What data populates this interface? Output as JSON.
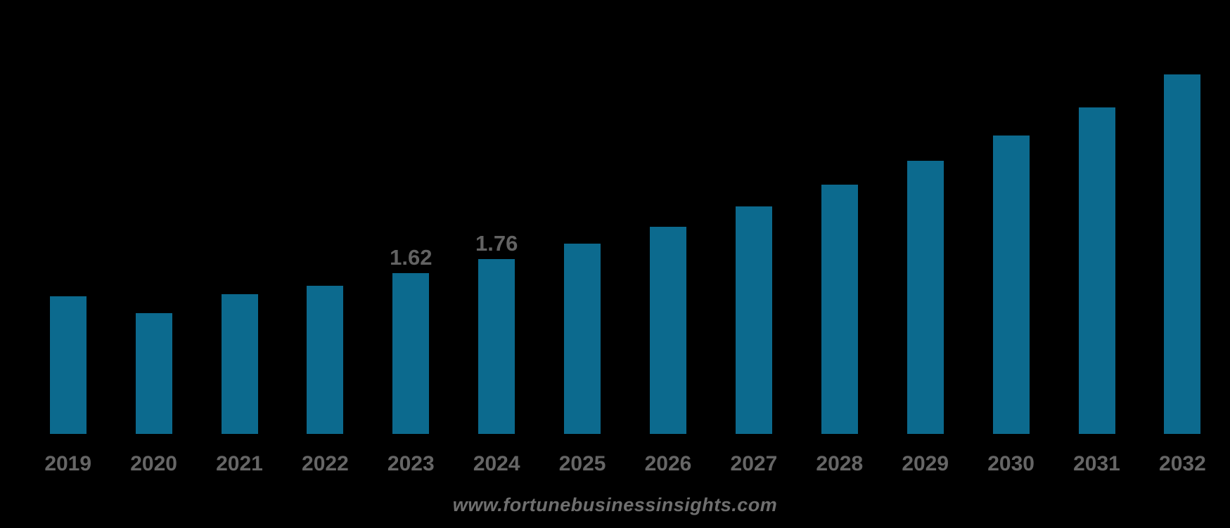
{
  "chart_data": {
    "type": "bar",
    "title": "",
    "xlabel": "",
    "ylabel": "",
    "legend": "none",
    "grid": false,
    "ylim": [
      0,
      3.8
    ],
    "categories": [
      "2019",
      "2020",
      "2021",
      "2022",
      "2023",
      "2024",
      "2025",
      "2026",
      "2027",
      "2028",
      "2029",
      "2030",
      "2031",
      "2032"
    ],
    "values": [
      1.39,
      1.22,
      1.41,
      1.49,
      1.62,
      1.76,
      1.92,
      2.09,
      2.29,
      2.51,
      2.75,
      3.01,
      3.29,
      3.62
    ],
    "data_labels": [
      "",
      "",
      "",
      "",
      "1.62",
      "1.76",
      "",
      "",
      "",
      "",
      "",
      "",
      "",
      ""
    ],
    "colors": {
      "bar": "#0C6A8E",
      "value_label": "#636363",
      "tick_label": "#666666",
      "background": "#000000"
    }
  },
  "watermark": {
    "text": "www.fortunebusinessinsights.com",
    "color": "#6F6F6F"
  }
}
